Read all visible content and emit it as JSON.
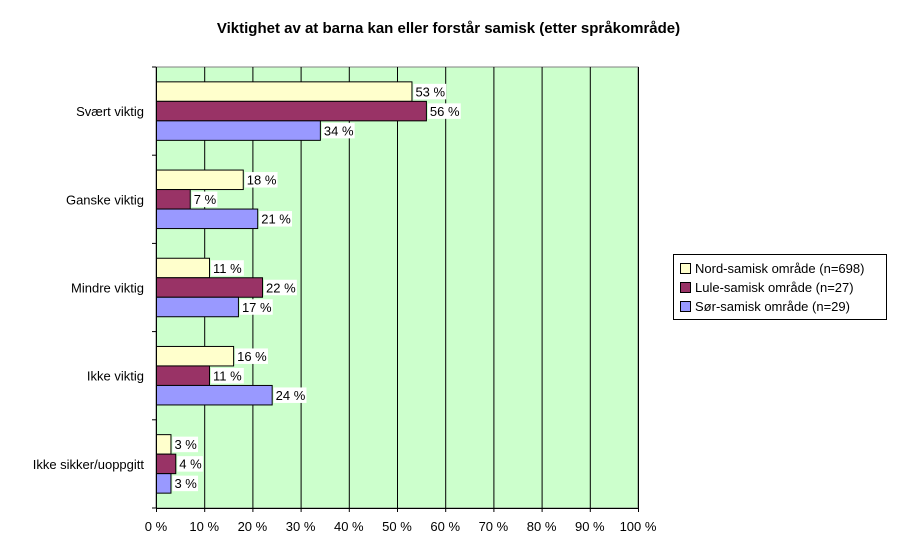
{
  "chart_data": {
    "type": "bar",
    "orientation": "horizontal",
    "title": "Viktighet av at barna kan eller forstår samisk (etter språkområde)",
    "categories": [
      "Svært viktig",
      "Ganske viktig",
      "Mindre viktig",
      "Ikke viktig",
      "Ikke sikker/uoppgitt"
    ],
    "series": [
      {
        "name": "Nord-samisk område (n=698)",
        "color": "#ffffcc",
        "values": [
          53,
          18,
          11,
          16,
          3
        ]
      },
      {
        "name": "Lule-samisk område (n=27)",
        "color": "#993366",
        "values": [
          56,
          7,
          22,
          11,
          4
        ]
      },
      {
        "name": "Sør-samisk område (n=29)",
        "color": "#9999ff",
        "values": [
          34,
          21,
          17,
          24,
          3
        ]
      }
    ],
    "data_label_suffix": " %",
    "xlim": [
      0,
      100
    ],
    "xticks": [
      0,
      10,
      20,
      30,
      40,
      50,
      60,
      70,
      80,
      90,
      100
    ],
    "xtick_labels": [
      "0 %",
      "10 %",
      "20 %",
      "30 %",
      "40 %",
      "50 %",
      "60 %",
      "70 %",
      "80 %",
      "90 %",
      "100 %"
    ],
    "plot_background": "#ccffcc",
    "grid": true,
    "legend_position": "right"
  }
}
